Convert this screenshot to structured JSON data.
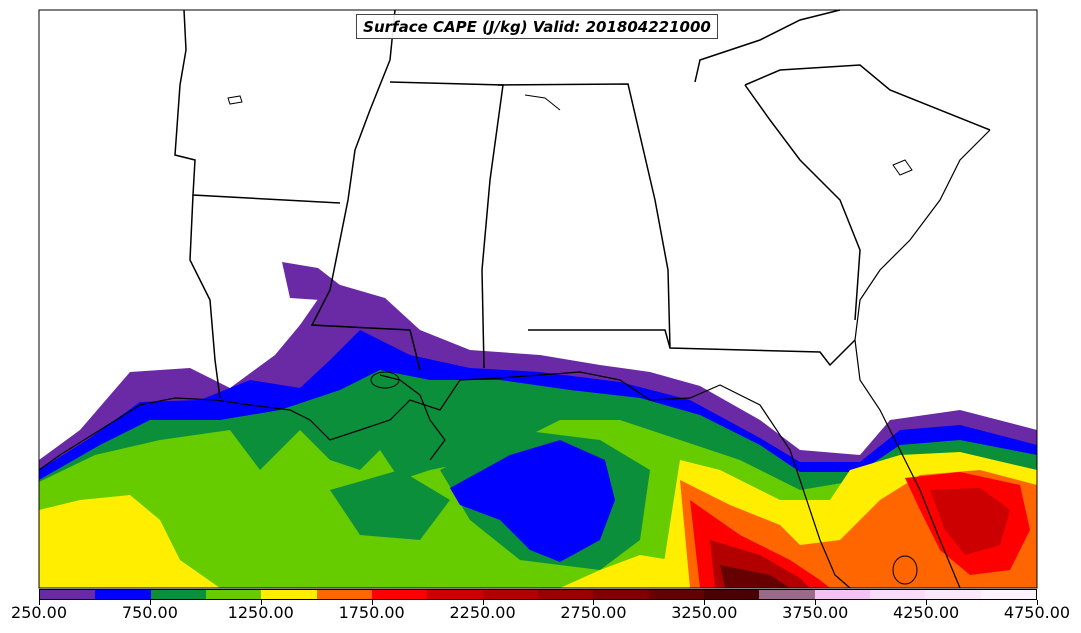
{
  "map": {
    "title": "Surface CAPE (J/kg) Valid: 201804221000",
    "field": "Surface CAPE",
    "units": "J/kg",
    "valid_time": "201804221000",
    "region": "Southeastern United States and northern Gulf of Mexico",
    "features": [
      "state-borders",
      "coastlines",
      "lakes"
    ]
  },
  "colorbar": {
    "min": 250,
    "max": 4750,
    "interval": 250,
    "colors": [
      "#6a2aa6",
      "#0000ff",
      "#0c8f3a",
      "#66cc00",
      "#ffee00",
      "#ff6600",
      "#ff0000",
      "#cc0000",
      "#b20000",
      "#990000",
      "#800000",
      "#660000",
      "#4a0000",
      "#9a6a8a",
      "#f4c2f4",
      "#f8dcf8",
      "#fbe9fb",
      "#fdf2fd"
    ],
    "tick_labels": [
      "250.00",
      "750.00",
      "1250.00",
      "1750.00",
      "2250.00",
      "2750.00",
      "3250.00",
      "3750.00",
      "4250.00",
      "4750.00"
    ]
  }
}
